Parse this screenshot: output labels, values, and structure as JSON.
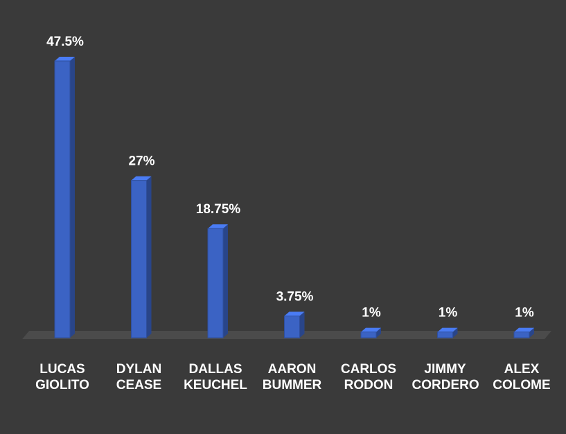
{
  "chart_data": {
    "type": "bar",
    "categories": [
      "LUCAS GIOLITO",
      "DYLAN CEASE",
      "DALLAS KEUCHEL",
      "AARON BUMMER",
      "CARLOS RODON",
      "JIMMY CORDERO",
      "ALEX COLOME"
    ],
    "values": [
      47.5,
      27,
      18.75,
      3.75,
      1,
      1,
      1
    ],
    "value_labels": [
      "47.5%",
      "27%",
      "18.75%",
      "3.75%",
      "1%",
      "1%",
      "1%"
    ],
    "color": "#3b63c4"
  }
}
